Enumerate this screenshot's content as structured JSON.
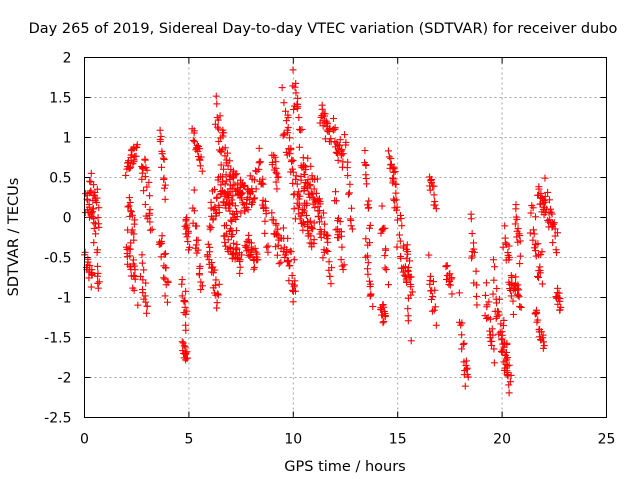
{
  "chart_data": {
    "type": "scatter",
    "title": "Day 265 of 2019, Sidereal Day-to-day VTEC variation (SDTVAR) for receiver dubo",
    "xlabel": "GPS time / hours",
    "ylabel": "SDTVAR / TECUs",
    "xlim": [
      0,
      25
    ],
    "ylim": [
      -2.5,
      2
    ],
    "grid": true,
    "marker": "+",
    "marker_color": "#ff0000",
    "x_ticks": [
      "0",
      "5",
      "10",
      "15",
      "20",
      "25"
    ],
    "y_ticks": [
      "2",
      "1.5",
      "1",
      "0.5",
      "0",
      "-0.5",
      "-1",
      "-1.5",
      "-2",
      "-2.5"
    ],
    "series": [
      {
        "name": "SDTVAR",
        "arcs": [
          {
            "x": [
              0.0,
              0.7
            ],
            "y": [
              0.3,
              0.1
            ],
            "spread": 0.25
          },
          {
            "x": [
              0.0,
              0.4
            ],
            "y": [
              -0.5,
              -0.8
            ],
            "spread": 0.12
          },
          {
            "x": [
              0.3,
              0.7
            ],
            "y": [
              0.5,
              -0.9
            ],
            "spread": 0.15
          },
          {
            "x": [
              2.0,
              2.5
            ],
            "y": [
              0.6,
              0.9
            ],
            "spread": 0.12
          },
          {
            "x": [
              2.0,
              2.5
            ],
            "y": [
              -0.3,
              -0.9
            ],
            "spread": 0.25
          },
          {
            "x": [
              2.1,
              2.4
            ],
            "y": [
              0.2,
              -0.2
            ],
            "spread": 0.15
          },
          {
            "x": [
              2.7,
              3.2
            ],
            "y": [
              0.6,
              0.1
            ],
            "spread": 0.3
          },
          {
            "x": [
              2.7,
              3.0
            ],
            "y": [
              -0.6,
              -1.2
            ],
            "spread": 0.15
          },
          {
            "x": [
              3.6,
              3.9
            ],
            "y": [
              1.1,
              0.3
            ],
            "spread": 0.2
          },
          {
            "x": [
              3.6,
              4.0
            ],
            "y": [
              -0.2,
              -1.0
            ],
            "spread": 0.25
          },
          {
            "x": [
              4.7,
              4.9
            ],
            "y": [
              -0.8,
              -1.3
            ],
            "spread": 0.15
          },
          {
            "x": [
              4.7,
              4.9
            ],
            "y": [
              -1.6,
              -1.8
            ],
            "spread": 0.08
          },
          {
            "x": [
              4.8,
              5.0
            ],
            "y": [
              0.0,
              -0.4
            ],
            "spread": 0.1
          },
          {
            "x": [
              5.2,
              5.6
            ],
            "y": [
              1.1,
              0.7
            ],
            "spread": 0.15
          },
          {
            "x": [
              5.2,
              5.6
            ],
            "y": [
              0.2,
              -0.9
            ],
            "spread": 0.25
          },
          {
            "x": [
              5.9,
              6.4
            ],
            "y": [
              -0.4,
              -1.0
            ],
            "spread": 0.2
          },
          {
            "x": [
              6.0,
              6.5
            ],
            "y": [
              0.0,
              0.3
            ],
            "spread": 0.25
          },
          {
            "x": [
              6.3,
              7.0
            ],
            "y": [
              1.3,
              0.4
            ],
            "spread": 0.3
          },
          {
            "x": [
              6.5,
              7.3
            ],
            "y": [
              0.4,
              0.0
            ],
            "spread": 0.2
          },
          {
            "x": [
              6.7,
              7.5
            ],
            "y": [
              -0.2,
              -0.6
            ],
            "spread": 0.2
          },
          {
            "x": [
              7.0,
              7.6
            ],
            "y": [
              0.5,
              0.3
            ],
            "spread": 0.15
          },
          {
            "x": [
              7.5,
              8.2
            ],
            "y": [
              0.2,
              0.4
            ],
            "spread": 0.2
          },
          {
            "x": [
              7.7,
              8.3
            ],
            "y": [
              -0.3,
              -0.6
            ],
            "spread": 0.15
          },
          {
            "x": [
              8.3,
              8.8
            ],
            "y": [
              0.8,
              -0.3
            ],
            "spread": 0.3
          },
          {
            "x": [
              9.0,
              9.3
            ],
            "y": [
              0.8,
              0.4
            ],
            "spread": 0.12
          },
          {
            "x": [
              9.0,
              9.4
            ],
            "y": [
              0.0,
              -0.5
            ],
            "spread": 0.2
          },
          {
            "x": [
              9.5,
              10.2
            ],
            "y": [
              1.4,
              0.2
            ],
            "spread": 0.3
          },
          {
            "x": [
              9.5,
              10.1
            ],
            "y": [
              -0.2,
              -0.9
            ],
            "spread": 0.25
          },
          {
            "x": [
              10.0,
              10.6
            ],
            "y": [
              1.7,
              0.3
            ],
            "spread": 0.3
          },
          {
            "x": [
              10.2,
              11.0
            ],
            "y": [
              0.2,
              -0.3
            ],
            "spread": 0.25
          },
          {
            "x": [
              10.5,
              11.3
            ],
            "y": [
              0.6,
              0.2
            ],
            "spread": 0.25
          },
          {
            "x": [
              11.2,
              11.8
            ],
            "y": [
              0.0,
              -0.6
            ],
            "spread": 0.25
          },
          {
            "x": [
              11.3,
              11.8
            ],
            "y": [
              1.3,
              1.0
            ],
            "spread": 0.15
          },
          {
            "x": [
              11.9,
              12.4
            ],
            "y": [
              1.1,
              0.7
            ],
            "spread": 0.15
          },
          {
            "x": [
              12.0,
              12.4
            ],
            "y": [
              0.2,
              -0.6
            ],
            "spread": 0.2
          },
          {
            "x": [
              12.5,
              12.8
            ],
            "y": [
              0.9,
              -0.3
            ],
            "spread": 0.2
          },
          {
            "x": [
              13.4,
              13.7
            ],
            "y": [
              0.9,
              -0.2
            ],
            "spread": 0.2
          },
          {
            "x": [
              13.5,
              13.8
            ],
            "y": [
              -0.4,
              -1.0
            ],
            "spread": 0.15
          },
          {
            "x": [
              14.2,
              14.5
            ],
            "y": [
              0.1,
              -0.7
            ],
            "spread": 0.2
          },
          {
            "x": [
              14.2,
              14.4
            ],
            "y": [
              -1.1,
              -1.3
            ],
            "spread": 0.1
          },
          {
            "x": [
              14.6,
              14.9
            ],
            "y": [
              0.8,
              0.3
            ],
            "spread": 0.15
          },
          {
            "x": [
              14.8,
              15.6
            ],
            "y": [
              0.4,
              -1.2
            ],
            "spread": 0.35
          },
          {
            "x": [
              15.4,
              15.7
            ],
            "y": [
              -0.3,
              -0.9
            ],
            "spread": 0.2
          },
          {
            "x": [
              16.5,
              16.8
            ],
            "y": [
              0.5,
              0.2
            ],
            "spread": 0.1
          },
          {
            "x": [
              16.5,
              16.8
            ],
            "y": [
              -0.6,
              -1.2
            ],
            "spread": 0.2
          },
          {
            "x": [
              17.3,
              17.6
            ],
            "y": [
              -0.6,
              -0.9
            ],
            "spread": 0.12
          },
          {
            "x": [
              18.0,
              18.4
            ],
            "y": [
              -1.2,
              -2.3
            ],
            "spread": 0.3
          },
          {
            "x": [
              18.5,
              18.8
            ],
            "y": [
              -0.2,
              -0.9
            ],
            "spread": 0.25
          },
          {
            "x": [
              19.2,
              19.6
            ],
            "y": [
              -1.0,
              -1.7
            ],
            "spread": 0.2
          },
          {
            "x": [
              19.6,
              20.3
            ],
            "y": [
              -0.8,
              -1.9
            ],
            "spread": 0.3
          },
          {
            "x": [
              20.0,
              20.4
            ],
            "y": [
              -1.5,
              -2.1
            ],
            "spread": 0.15
          },
          {
            "x": [
              20.1,
              20.6
            ],
            "y": [
              -0.2,
              -1.1
            ],
            "spread": 0.25
          },
          {
            "x": [
              20.6,
              20.9
            ],
            "y": [
              0.1,
              -0.5
            ],
            "spread": 0.2
          },
          {
            "x": [
              20.6,
              20.9
            ],
            "y": [
              -0.8,
              -1.1
            ],
            "spread": 0.1
          },
          {
            "x": [
              21.4,
              21.9
            ],
            "y": [
              0.0,
              -0.7
            ],
            "spread": 0.25
          },
          {
            "x": [
              21.6,
              22.0
            ],
            "y": [
              -1.2,
              -1.6
            ],
            "spread": 0.12
          },
          {
            "x": [
              21.7,
              22.0
            ],
            "y": [
              0.35,
              0.1
            ],
            "spread": 0.1
          },
          {
            "x": [
              22.0,
              22.6
            ],
            "y": [
              0.3,
              -0.3
            ],
            "spread": 0.2
          },
          {
            "x": [
              22.6,
              22.8
            ],
            "y": [
              -0.9,
              -1.1
            ],
            "spread": 0.08
          }
        ]
      }
    ]
  }
}
